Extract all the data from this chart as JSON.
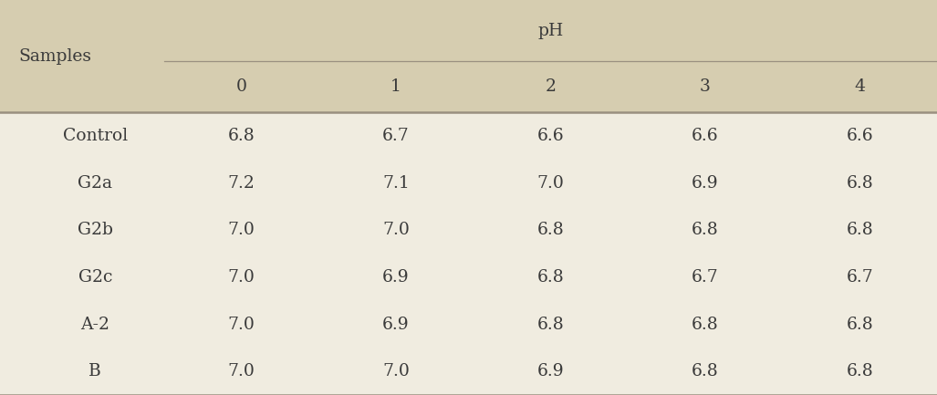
{
  "header_bg_color": "#d6cdb0",
  "body_bg_color": "#f0ece0",
  "text_color": "#3a3a3a",
  "line_color": "#9a9080",
  "top_header": "pH",
  "col_headers": [
    "0",
    "1",
    "2",
    "3",
    "4"
  ],
  "row_label": "Samples",
  "rows": [
    {
      "label": "Control",
      "values": [
        "6.8",
        "6.7",
        "6.6",
        "6.6",
        "6.6"
      ]
    },
    {
      "label": "G2a",
      "values": [
        "7.2",
        "7.1",
        "7.0",
        "6.9",
        "6.8"
      ]
    },
    {
      "label": "G2b",
      "values": [
        "7.0",
        "7.0",
        "6.8",
        "6.8",
        "6.8"
      ]
    },
    {
      "label": "G2c",
      "values": [
        "7.0",
        "6.9",
        "6.8",
        "6.7",
        "6.7"
      ]
    },
    {
      "label": "A-2",
      "values": [
        "7.0",
        "6.9",
        "6.8",
        "6.8",
        "6.8"
      ]
    },
    {
      "label": "B",
      "values": [
        "7.0",
        "7.0",
        "6.9",
        "6.8",
        "6.8"
      ]
    }
  ],
  "font_size": 13.5,
  "header_font_size": 13.5,
  "fig_width": 10.27,
  "fig_height": 4.33,
  "dpi": 100
}
